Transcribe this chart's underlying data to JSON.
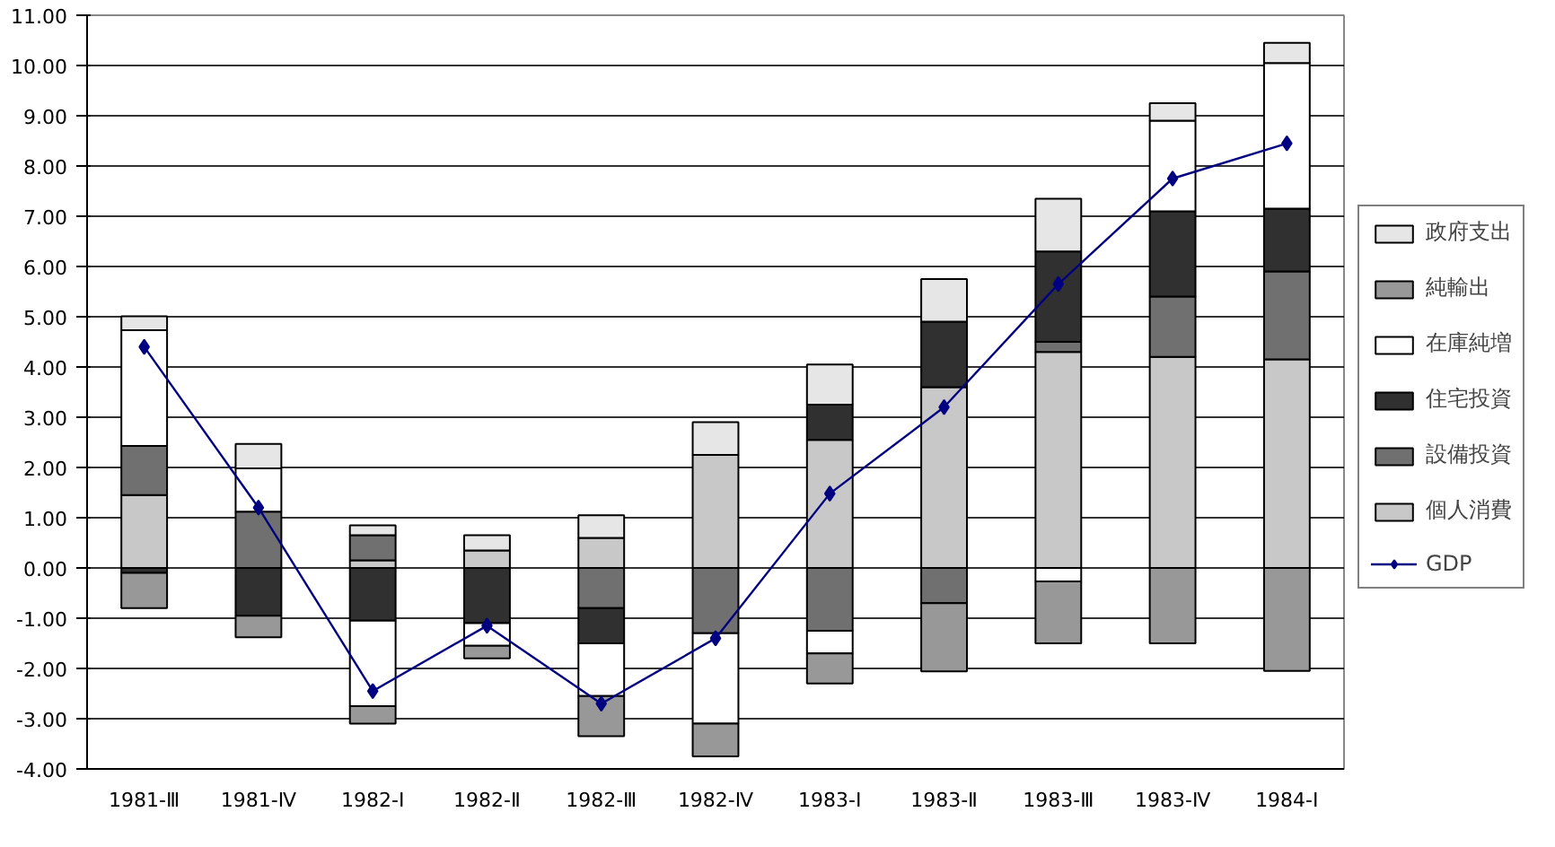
{
  "chart_data": {
    "type": "bar",
    "stacked": true,
    "categories": [
      "1981-Ⅲ",
      "1981-Ⅳ",
      "1982-Ⅰ",
      "1982-Ⅱ",
      "1982-Ⅲ",
      "1982-Ⅳ",
      "1983-Ⅰ",
      "1983-Ⅱ",
      "1983-Ⅲ",
      "1983-Ⅳ",
      "1984-Ⅰ"
    ],
    "series": [
      {
        "name": "個人消費",
        "color": "#c8c8c8",
        "values": [
          1.45,
          0,
          0.15,
          0.35,
          0.6,
          2.25,
          2.55,
          3.6,
          4.3,
          4.2,
          4.15
        ]
      },
      {
        "name": "設備投資",
        "color": "#707070",
        "values": [
          0.98,
          1.12,
          0.5,
          0,
          -0.8,
          -1.3,
          -1.25,
          -0.7,
          0.2,
          1.2,
          1.75
        ]
      },
      {
        "name": "住宅投資",
        "color": "#303030",
        "values": [
          -0.1,
          -0.95,
          -1.05,
          -1.1,
          -0.7,
          0,
          0.7,
          1.3,
          1.8,
          1.7,
          1.25
        ]
      },
      {
        "name": "在庫純増",
        "color": "#ffffff",
        "values": [
          2.3,
          0.86,
          -1.7,
          -0.45,
          -1.05,
          -1.8,
          -0.45,
          0,
          -0.27,
          1.8,
          2.9
        ]
      },
      {
        "name": "純輸出",
        "color": "#989898",
        "values": [
          -0.7,
          -0.43,
          -0.35,
          -0.25,
          -0.8,
          -0.65,
          -0.6,
          -1.36,
          -1.23,
          -1.5,
          -2.05
        ]
      },
      {
        "name": "政府支出",
        "color": "#e6e6e6",
        "values": [
          0.28,
          0.49,
          0.2,
          0.3,
          0.45,
          0.65,
          0.8,
          0.85,
          1.05,
          0.35,
          0.4
        ]
      },
      {
        "name": "GDP",
        "type": "line",
        "color": "#000080",
        "marker": "diamond",
        "values": [
          4.4,
          1.2,
          -2.45,
          -1.15,
          -2.7,
          -1.4,
          1.48,
          3.2,
          5.65,
          7.75,
          8.45
        ]
      }
    ],
    "ylim": [
      -4,
      11
    ],
    "yticks": [
      {
        "value": -4,
        "label": "-4.00"
      },
      {
        "value": -3,
        "label": "-3.00"
      },
      {
        "value": -2,
        "label": "-2.00"
      },
      {
        "value": -1,
        "label": "-1.00"
      },
      {
        "value": 0,
        "label": "0.00"
      },
      {
        "value": 1,
        "label": "1.00"
      },
      {
        "value": 2,
        "label": "2.00"
      },
      {
        "value": 3,
        "label": "3.00"
      },
      {
        "value": 4,
        "label": "4.00"
      },
      {
        "value": 5,
        "label": "5.00"
      },
      {
        "value": 6,
        "label": "6.00"
      },
      {
        "value": 7,
        "label": "7.00"
      },
      {
        "value": 8,
        "label": "8.00"
      },
      {
        "value": 9,
        "label": "9.00"
      },
      {
        "value": 10,
        "label": "10.00"
      },
      {
        "value": 11,
        "label": "11.00"
      }
    ],
    "grid": "y",
    "legend": "right"
  }
}
